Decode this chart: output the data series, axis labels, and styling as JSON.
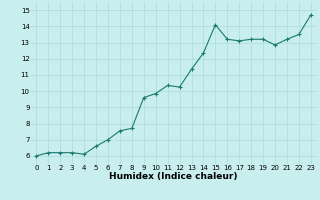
{
  "x": [
    0,
    1,
    2,
    3,
    4,
    5,
    6,
    7,
    8,
    9,
    10,
    11,
    12,
    13,
    14,
    15,
    16,
    17,
    18,
    19,
    20,
    21,
    22,
    23
  ],
  "y": [
    6.0,
    6.2,
    6.2,
    6.2,
    6.1,
    6.6,
    7.0,
    7.55,
    7.7,
    9.6,
    9.85,
    10.35,
    10.25,
    11.35,
    12.35,
    14.1,
    13.2,
    13.1,
    13.2,
    13.2,
    12.85,
    13.2,
    13.5,
    14.7
  ],
  "line_color": "#1a7a6e",
  "marker_color": "#1a7a6e",
  "bg_color": "#c8eeee",
  "grid_color": "#aadcdc",
  "xlabel": "Humidex (Indice chaleur)",
  "xlim": [
    -0.5,
    23.5
  ],
  "ylim": [
    5.5,
    15.5
  ],
  "yticks": [
    6,
    7,
    8,
    9,
    10,
    11,
    12,
    13,
    14,
    15
  ],
  "xticks": [
    0,
    1,
    2,
    3,
    4,
    5,
    6,
    7,
    8,
    9,
    10,
    11,
    12,
    13,
    14,
    15,
    16,
    17,
    18,
    19,
    20,
    21,
    22,
    23
  ],
  "tick_fontsize": 5.0,
  "xlabel_fontsize": 6.5,
  "marker_size": 2.5,
  "line_width": 0.8
}
